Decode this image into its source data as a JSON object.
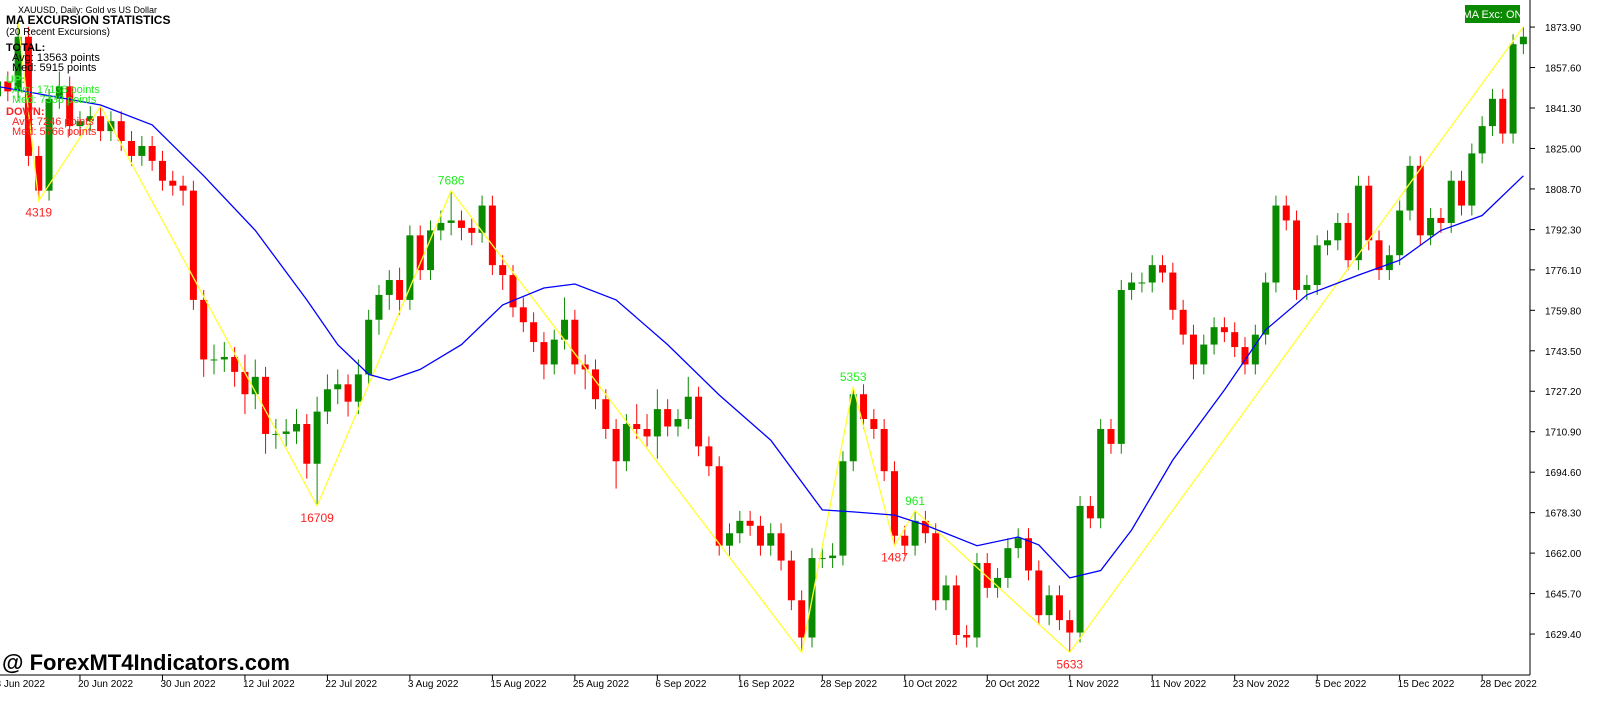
{
  "chart_data": {
    "type": "candlestick",
    "symbol": "XAUUSD, Daily:  Gold vs US Dollar",
    "up_color": "#0a8a00",
    "down_color": "#ff0000",
    "ylim": [
      1612.9,
      1884.8
    ],
    "yticks": [
      {
        "value": 1873.9,
        "label": "1873.90"
      },
      {
        "value": 1857.6,
        "label": "1857.60"
      },
      {
        "value": 1841.3,
        "label": "1841.30"
      },
      {
        "value": 1825,
        "label": "1825.00"
      },
      {
        "value": 1808.7,
        "label": "1808.70"
      },
      {
        "value": 1792.3,
        "label": "1792.30"
      },
      {
        "value": 1776.1,
        "label": "1776.10"
      },
      {
        "value": 1759.8,
        "label": "1759.80"
      },
      {
        "value": 1743.5,
        "label": "1743.50"
      },
      {
        "value": 1727.2,
        "label": "1727.20"
      },
      {
        "value": 1710.9,
        "label": "1710.90"
      },
      {
        "value": 1694.6,
        "label": "1694.60"
      },
      {
        "value": 1678.3,
        "label": "1678.30"
      },
      {
        "value": 1662,
        "label": "1662.00"
      },
      {
        "value": 1645.7,
        "label": "1645.70"
      },
      {
        "value": 1629.4,
        "label": "1629.40"
      }
    ],
    "xlim": [
      0,
      148
    ],
    "xticks": [
      {
        "value": 0,
        "label": "8 Jun 2022"
      },
      {
        "value": 8,
        "label": "20 Jun 2022"
      },
      {
        "value": 16,
        "label": "30 Jun 2022"
      },
      {
        "value": 24,
        "label": "12 Jul 2022"
      },
      {
        "value": 32,
        "label": "22 Jul 2022"
      },
      {
        "value": 40,
        "label": "3 Aug 2022"
      },
      {
        "value": 48,
        "label": "15 Aug 2022"
      },
      {
        "value": 56,
        "label": "25 Aug 2022"
      },
      {
        "value": 64,
        "label": "6 Sep 2022"
      },
      {
        "value": 72,
        "label": "16 Sep 2022"
      },
      {
        "value": 80,
        "label": "28 Sep 2022"
      },
      {
        "value": 88,
        "label": "10 Oct 2022"
      },
      {
        "value": 96,
        "label": "20 Oct 2022"
      },
      {
        "value": 104,
        "label": "1 Nov 2022"
      },
      {
        "value": 112,
        "label": "11 Nov 2022"
      },
      {
        "value": 120,
        "label": "23 Nov 2022"
      },
      {
        "value": 128,
        "label": "5 Dec 2022"
      },
      {
        "value": 136,
        "label": "15 Dec 2022"
      },
      {
        "value": 144,
        "label": "28 Dec 2022"
      }
    ],
    "candles": [
      [
        1846,
        1856,
        1842,
        1852
      ],
      [
        1852,
        1856,
        1844,
        1848
      ],
      [
        1848,
        1876,
        1844,
        1870
      ],
      [
        1870,
        1874,
        1818,
        1822
      ],
      [
        1822,
        1826,
        1804,
        1808
      ],
      [
        1808,
        1849,
        1804,
        1845
      ],
      [
        1845,
        1856,
        1841,
        1850
      ],
      [
        1850,
        1854,
        1830,
        1834
      ],
      [
        1834,
        1840,
        1830,
        1836
      ],
      [
        1836,
        1842,
        1832,
        1838
      ],
      [
        1838,
        1842,
        1828,
        1832
      ],
      [
        1832,
        1840,
        1828,
        1836
      ],
      [
        1836,
        1840,
        1824,
        1828
      ],
      [
        1828,
        1832,
        1818,
        1822
      ],
      [
        1822,
        1830,
        1818,
        1826
      ],
      [
        1826,
        1830,
        1816,
        1820
      ],
      [
        1820,
        1824,
        1808,
        1812
      ],
      [
        1812,
        1816,
        1806,
        1810
      ],
      [
        1810,
        1814,
        1802,
        1808
      ],
      [
        1808,
        1812,
        1760,
        1764
      ],
      [
        1764,
        1768,
        1733,
        1740
      ],
      [
        1740,
        1746,
        1734,
        1740
      ],
      [
        1740,
        1747,
        1735,
        1741
      ],
      [
        1741,
        1745,
        1729,
        1735
      ],
      [
        1735,
        1742,
        1718,
        1726
      ],
      [
        1726,
        1740,
        1720,
        1733
      ],
      [
        1733,
        1737,
        1702,
        1710
      ],
      [
        1710,
        1716,
        1704,
        1710
      ],
      [
        1710,
        1716,
        1705,
        1711
      ],
      [
        1711,
        1720,
        1706,
        1714
      ],
      [
        1714,
        1718,
        1692,
        1698
      ],
      [
        1698,
        1725,
        1681,
        1719
      ],
      [
        1719,
        1734,
        1714,
        1728
      ],
      [
        1728,
        1736,
        1722,
        1730
      ],
      [
        1730,
        1734,
        1717,
        1723
      ],
      [
        1723,
        1740,
        1718,
        1734
      ],
      [
        1734,
        1760,
        1730,
        1756
      ],
      [
        1756,
        1770,
        1750,
        1766
      ],
      [
        1766,
        1776,
        1760,
        1772
      ],
      [
        1772,
        1777,
        1758,
        1764
      ],
      [
        1764,
        1794,
        1760,
        1790
      ],
      [
        1790,
        1794,
        1772,
        1776
      ],
      [
        1776,
        1796,
        1772,
        1792
      ],
      [
        1792,
        1800,
        1788,
        1795
      ],
      [
        1795,
        1808,
        1790,
        1796
      ],
      [
        1796,
        1800,
        1788,
        1793
      ],
      [
        1793,
        1797,
        1786,
        1791
      ],
      [
        1791,
        1806,
        1787,
        1802
      ],
      [
        1802,
        1806,
        1774,
        1778
      ],
      [
        1778,
        1782,
        1768,
        1774
      ],
      [
        1774,
        1778,
        1757,
        1761
      ],
      [
        1761,
        1765,
        1751,
        1755
      ],
      [
        1755,
        1759,
        1743,
        1747
      ],
      [
        1747,
        1751,
        1732,
        1738
      ],
      [
        1738,
        1752,
        1734,
        1748
      ],
      [
        1748,
        1765,
        1744,
        1756
      ],
      [
        1756,
        1760,
        1734,
        1738
      ],
      [
        1738,
        1742,
        1728,
        1736
      ],
      [
        1736,
        1740,
        1720,
        1724
      ],
      [
        1724,
        1728,
        1708,
        1712
      ],
      [
        1712,
        1716,
        1688,
        1699
      ],
      [
        1699,
        1718,
        1695,
        1714
      ],
      [
        1714,
        1722,
        1708,
        1712
      ],
      [
        1712,
        1718,
        1705,
        1709
      ],
      [
        1709,
        1728,
        1700,
        1720
      ],
      [
        1720,
        1724,
        1709,
        1713
      ],
      [
        1713,
        1720,
        1709,
        1716
      ],
      [
        1716,
        1733,
        1712,
        1725
      ],
      [
        1725,
        1729,
        1701,
        1705
      ],
      [
        1705,
        1709,
        1693,
        1697
      ],
      [
        1697,
        1701,
        1661,
        1665
      ],
      [
        1665,
        1674,
        1661,
        1670
      ],
      [
        1670,
        1679,
        1666,
        1675
      ],
      [
        1675,
        1679,
        1669,
        1673
      ],
      [
        1673,
        1677,
        1661,
        1665
      ],
      [
        1665,
        1674,
        1661,
        1670
      ],
      [
        1670,
        1674,
        1655,
        1659
      ],
      [
        1659,
        1663,
        1639,
        1643
      ],
      [
        1643,
        1647,
        1622,
        1628
      ],
      [
        1628,
        1664,
        1624,
        1660
      ],
      [
        1660,
        1664,
        1656,
        1660
      ],
      [
        1660,
        1666,
        1656,
        1661
      ],
      [
        1661,
        1703,
        1657,
        1699
      ],
      [
        1699,
        1729,
        1695,
        1726
      ],
      [
        1726,
        1730,
        1712,
        1716
      ],
      [
        1716,
        1720,
        1708,
        1712
      ],
      [
        1712,
        1716,
        1691,
        1695
      ],
      [
        1695,
        1699,
        1665,
        1669
      ],
      [
        1669,
        1673,
        1661,
        1665
      ],
      [
        1665,
        1679,
        1661,
        1675
      ],
      [
        1675,
        1679,
        1666,
        1670
      ],
      [
        1670,
        1674,
        1639,
        1643
      ],
      [
        1643,
        1653,
        1639,
        1649
      ],
      [
        1649,
        1653,
        1625,
        1629
      ],
      [
        1629,
        1633,
        1624,
        1628
      ],
      [
        1628,
        1662,
        1624,
        1658
      ],
      [
        1658,
        1662,
        1644,
        1648
      ],
      [
        1648,
        1656,
        1644,
        1652
      ],
      [
        1652,
        1668,
        1648,
        1664
      ],
      [
        1664,
        1672,
        1660,
        1668
      ],
      [
        1668,
        1672,
        1651,
        1655
      ],
      [
        1655,
        1659,
        1633,
        1637
      ],
      [
        1637,
        1649,
        1633,
        1645
      ],
      [
        1645,
        1649,
        1631,
        1635
      ],
      [
        1635,
        1639,
        1622,
        1630
      ],
      [
        1630,
        1685,
        1626,
        1681
      ],
      [
        1681,
        1685,
        1672,
        1676
      ],
      [
        1676,
        1716,
        1672,
        1712
      ],
      [
        1712,
        1716,
        1702,
        1706
      ],
      [
        1706,
        1772,
        1702,
        1768
      ],
      [
        1768,
        1775,
        1764,
        1771
      ],
      [
        1771,
        1775,
        1767,
        1771
      ],
      [
        1771,
        1782,
        1767,
        1778
      ],
      [
        1778,
        1782,
        1771,
        1775
      ],
      [
        1775,
        1779,
        1756,
        1760
      ],
      [
        1760,
        1764,
        1746,
        1750
      ],
      [
        1750,
        1754,
        1732,
        1738
      ],
      [
        1738,
        1750,
        1734,
        1746
      ],
      [
        1746,
        1757,
        1742,
        1753
      ],
      [
        1753,
        1757,
        1747,
        1751
      ],
      [
        1751,
        1755,
        1741,
        1745
      ],
      [
        1745,
        1749,
        1734,
        1738
      ],
      [
        1738,
        1754,
        1734,
        1750
      ],
      [
        1750,
        1775,
        1746,
        1771
      ],
      [
        1771,
        1806,
        1767,
        1802
      ],
      [
        1802,
        1806,
        1792,
        1796
      ],
      [
        1796,
        1800,
        1764,
        1768
      ],
      [
        1768,
        1774,
        1764,
        1770
      ],
      [
        1770,
        1790,
        1766,
        1786
      ],
      [
        1786,
        1792,
        1782,
        1788
      ],
      [
        1788,
        1799,
        1784,
        1795
      ],
      [
        1795,
        1799,
        1776,
        1780
      ],
      [
        1780,
        1814,
        1776,
        1810
      ],
      [
        1810,
        1814,
        1784,
        1788
      ],
      [
        1788,
        1792,
        1772,
        1776
      ],
      [
        1776,
        1786,
        1772,
        1782
      ],
      [
        1782,
        1804,
        1778,
        1800
      ],
      [
        1800,
        1822,
        1796,
        1818
      ],
      [
        1818,
        1822,
        1786,
        1790
      ],
      [
        1790,
        1801,
        1786,
        1797
      ],
      [
        1797,
        1801,
        1791,
        1795
      ],
      [
        1795,
        1816,
        1791,
        1812
      ],
      [
        1812,
        1816,
        1798,
        1802
      ],
      [
        1802,
        1827,
        1798,
        1823
      ],
      [
        1823,
        1838,
        1819,
        1834
      ],
      [
        1834,
        1849,
        1830,
        1845
      ],
      [
        1845,
        1849,
        1827,
        1831
      ],
      [
        1831,
        1871,
        1827,
        1867
      ],
      [
        1867,
        1874,
        1863,
        1870
      ]
    ],
    "ma": {
      "color": "#0000ff",
      "x": [
        0,
        10,
        15,
        20,
        25,
        30,
        33,
        36,
        38,
        41,
        45,
        49,
        53,
        56,
        60,
        65,
        70,
        75,
        80,
        83,
        87,
        90,
        95,
        99,
        101,
        104,
        107,
        110,
        114,
        119,
        123,
        127,
        132,
        136,
        140,
        144,
        148
      ],
      "values": [
        1850,
        1842.5,
        1834.5,
        1814,
        1792,
        1764,
        1746,
        1734,
        1731.7,
        1736,
        1746,
        1762,
        1768.8,
        1770.4,
        1764,
        1746,
        1725.7,
        1707.5,
        1679.4,
        1678.6,
        1677.3,
        1673.3,
        1665,
        1668.5,
        1665.3,
        1652,
        1655,
        1671.3,
        1699.5,
        1727.7,
        1751.9,
        1766,
        1774,
        1780,
        1792,
        1798,
        1814
      ]
    },
    "zigzag": {
      "color": "#ffff33",
      "peak_color": "#22ee22",
      "trough_color": "#ff2020",
      "x": [
        2,
        4,
        10,
        31,
        44,
        78,
        83,
        87,
        89,
        104,
        148
      ],
      "values": [
        1876,
        1804,
        1842,
        1681,
        1808,
        1622,
        1729,
        1665,
        1679,
        1622,
        1874
      ],
      "labels": [
        null,
        "4319",
        null,
        "16709",
        "7686",
        null,
        "5353",
        "1487",
        "961",
        "5633",
        null
      ]
    }
  },
  "stats": {
    "title": "MA EXCURSION STATISTICS",
    "subtitle": "(20 Recent Excursions)",
    "total": {
      "heading": "TOTAL:",
      "avg": "Avg: 13563 points",
      "med": "Med: 5915 points"
    },
    "up": {
      "heading": "UP:",
      "avg": "Avg: 17138 points",
      "med": "Med: 7338 points"
    },
    "down": {
      "heading": "DOWN:",
      "avg": "Avg: 7246 points",
      "med": "Med: 5766 points"
    }
  },
  "button": {
    "label": "MA Exc: ON"
  },
  "watermark": "@ ForexMT4Indicators.com"
}
